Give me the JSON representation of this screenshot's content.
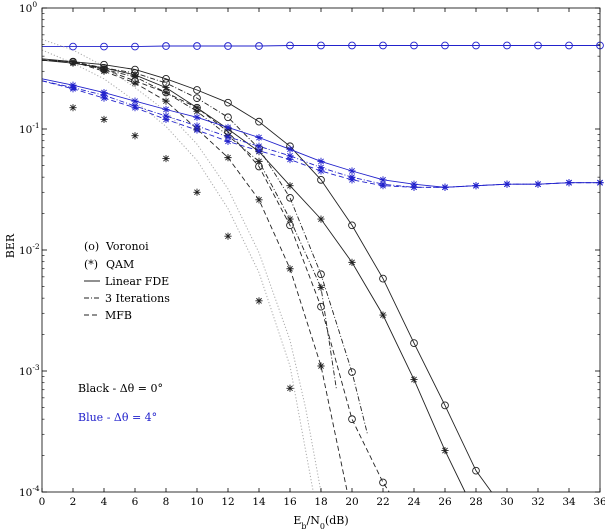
{
  "chart_data": {
    "type": "line",
    "title": "",
    "xlabel": {
      "base": "E",
      "sub1": "b",
      "mid": "/N",
      "sub2": "0",
      "tail": "(dB)"
    },
    "ylabel": "BER",
    "xlim": [
      0,
      36
    ],
    "ylim": [
      0.0001,
      1
    ],
    "yscale": "log",
    "x_ticks": [
      "0",
      "2",
      "4",
      "6",
      "8",
      "10",
      "12",
      "14",
      "16",
      "18",
      "20",
      "22",
      "24",
      "26",
      "28",
      "30",
      "32",
      "34",
      "36"
    ],
    "y_ticks": [
      {
        "value": 1,
        "mantissa": "10",
        "exp": "0"
      },
      {
        "value": 0.1,
        "mantissa": "10",
        "exp": "-1"
      },
      {
        "value": 0.01,
        "mantissa": "10",
        "exp": "-2"
      },
      {
        "value": 0.001,
        "mantissa": "10",
        "exp": "-3"
      },
      {
        "value": 0.0001,
        "mantissa": "10",
        "exp": "-4"
      }
    ],
    "grid": false,
    "legend": {
      "placement": "left-middle",
      "markers": [
        {
          "symbol": "(o)",
          "text": "Voronoi"
        },
        {
          "symbol": "(*)",
          "text": "QAM"
        }
      ],
      "lines": [
        {
          "style": "solid",
          "text": "Linear FDE"
        },
        {
          "style": "dashdot",
          "text": "3 Iterations"
        },
        {
          "style": "dashed",
          "text": "MFB"
        }
      ]
    },
    "annotations": [
      {
        "text": "Black - Δθ = 0°",
        "color": "#000000"
      },
      {
        "text": "Blue - Δθ = 4°",
        "color": "#2222cc"
      }
    ],
    "colors": {
      "black": "#222222",
      "blue": "#2222cc",
      "dotted": "#aaaaaa"
    },
    "series": [
      {
        "color": "black",
        "dash": "solid",
        "marker": "o",
        "x": [
          0,
          2,
          4,
          6,
          8,
          10,
          12,
          14,
          16,
          18,
          20,
          22,
          24,
          26,
          28,
          29
        ],
        "y": [
          0.38,
          0.36,
          0.34,
          0.31,
          0.26,
          0.21,
          0.165,
          0.115,
          0.072,
          0.038,
          0.016,
          0.0058,
          0.0017,
          0.00052,
          0.00015,
          0.0001
        ]
      },
      {
        "color": "black",
        "dash": "solid",
        "marker": "*",
        "x": [
          0,
          2,
          4,
          6,
          8,
          10,
          12,
          14,
          16,
          18,
          20,
          22,
          24,
          26,
          27.3
        ],
        "y": [
          0.37,
          0.35,
          0.32,
          0.28,
          0.22,
          0.15,
          0.1,
          0.065,
          0.034,
          0.018,
          0.0079,
          0.0029,
          0.00085,
          0.00022,
          0.0001
        ]
      },
      {
        "color": "black",
        "dash": "dashdot",
        "marker": "o",
        "x": [
          0,
          2,
          4,
          6,
          8,
          10,
          12,
          14,
          16,
          18,
          20,
          21
        ],
        "y": [
          0.37,
          0.36,
          0.32,
          0.29,
          0.24,
          0.18,
          0.125,
          0.069,
          0.027,
          0.0063,
          0.00098,
          0.0003
        ]
      },
      {
        "color": "black",
        "dash": "dashdot",
        "marker": "*",
        "x": [
          0,
          2,
          4,
          6,
          8,
          10,
          12,
          14,
          16,
          18,
          19
        ],
        "y": [
          0.37,
          0.36,
          0.31,
          0.27,
          0.2,
          0.14,
          0.088,
          0.054,
          0.018,
          0.0049,
          0.0007
        ]
      },
      {
        "color": "black",
        "dash": "dashed",
        "marker": "o",
        "x": [
          0,
          2,
          4,
          6,
          8,
          10,
          12,
          14,
          16,
          18,
          20,
          22,
          22.4
        ],
        "y": [
          0.37,
          0.36,
          0.31,
          0.25,
          0.2,
          0.15,
          0.095,
          0.049,
          0.016,
          0.0034,
          0.0004,
          0.00012,
          0.0001
        ]
      },
      {
        "color": "black",
        "dash": "dashed",
        "marker": "*",
        "x": [
          0,
          2,
          4,
          6,
          8,
          10,
          12,
          14,
          16,
          18,
          19.7
        ],
        "y": [
          0.37,
          0.36,
          0.3,
          0.24,
          0.17,
          0.1,
          0.058,
          0.026,
          0.007,
          0.0011,
          0.0001
        ]
      },
      {
        "color": "blue",
        "dash": "solid",
        "marker": "o",
        "x": [
          0,
          2,
          4,
          6,
          8,
          10,
          12,
          14,
          16,
          18,
          20,
          22,
          24,
          26,
          28,
          30,
          32,
          34,
          36
        ],
        "y": [
          0.48,
          0.48,
          0.48,
          0.48,
          0.485,
          0.485,
          0.485,
          0.485,
          0.49,
          0.49,
          0.49,
          0.49,
          0.49,
          0.49,
          0.49,
          0.49,
          0.49,
          0.49,
          0.49
        ]
      },
      {
        "color": "blue",
        "dash": "solid",
        "marker": "*",
        "x": [
          0,
          2,
          4,
          6,
          8,
          10,
          12,
          14,
          16,
          18,
          20,
          22,
          24,
          26,
          28,
          30,
          32,
          34,
          36
        ],
        "y": [
          0.26,
          0.23,
          0.2,
          0.17,
          0.145,
          0.125,
          0.103,
          0.085,
          0.068,
          0.054,
          0.045,
          0.038,
          0.035,
          0.033,
          0.034,
          0.035,
          0.035,
          0.036,
          0.036
        ]
      },
      {
        "color": "blue",
        "dash": "dashdot",
        "marker": "*",
        "x": [
          0,
          2,
          4,
          6,
          8,
          10,
          12,
          14,
          16,
          18,
          20,
          22,
          24,
          26,
          28,
          30,
          32,
          34,
          36
        ],
        "y": [
          0.25,
          0.22,
          0.19,
          0.155,
          0.128,
          0.106,
          0.086,
          0.072,
          0.06,
          0.048,
          0.04,
          0.035,
          0.033,
          0.033,
          0.034,
          0.035,
          0.035,
          0.036,
          0.036
        ]
      },
      {
        "color": "blue",
        "dash": "dashed",
        "marker": "*",
        "x": [
          0,
          2,
          4,
          6,
          8,
          10,
          12,
          14,
          16,
          18,
          20,
          22,
          24,
          26,
          28,
          30,
          32,
          34,
          36
        ],
        "y": [
          0.25,
          0.215,
          0.18,
          0.15,
          0.12,
          0.098,
          0.079,
          0.066,
          0.056,
          0.045,
          0.038,
          0.034,
          0.033,
          0.033,
          0.034,
          0.035,
          0.035,
          0.036,
          0.036
        ]
      },
      {
        "color": "dotted",
        "dash": "dotted",
        "marker": "none",
        "x": [
          0,
          2,
          4,
          6,
          8,
          10,
          12,
          14,
          16,
          17,
          18
        ],
        "y": [
          0.55,
          0.45,
          0.33,
          0.22,
          0.14,
          0.075,
          0.032,
          0.0095,
          0.0018,
          0.0005,
          0.0001
        ]
      },
      {
        "color": "dotted",
        "dash": "dotted",
        "marker": "none",
        "x": [
          0,
          2,
          4,
          6,
          8,
          10,
          12,
          14,
          16,
          17.5
        ],
        "y": [
          0.45,
          0.35,
          0.26,
          0.17,
          0.105,
          0.055,
          0.022,
          0.0065,
          0.0011,
          0.0001
        ]
      }
    ],
    "marker_points": [
      {
        "color": "black",
        "marker": "*",
        "x": [
          2,
          4,
          6,
          8,
          10,
          12,
          14,
          16
        ],
        "y": [
          0.15,
          0.12,
          0.088,
          0.057,
          0.03,
          0.013,
          0.0038,
          0.00072
        ]
      }
    ]
  }
}
